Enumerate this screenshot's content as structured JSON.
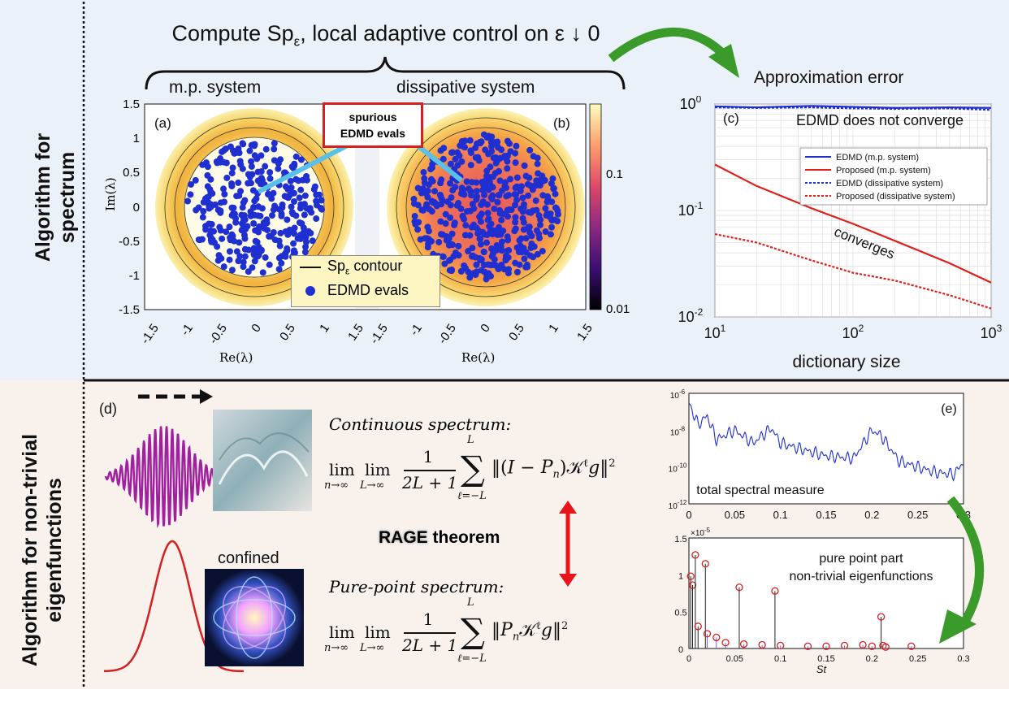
{
  "top_section": {
    "side_label": "Algorithm for spectrum",
    "header": "Compute Spε, local adaptive control on ε ↓ 0",
    "header_part1": "Compute Sp",
    "header_sub": "ε",
    "header_part2": ", local adaptive control on ε ↓ 0",
    "subtitle_left": "m.p. system",
    "subtitle_right": "dissipative system",
    "panel_a_label": "(a)",
    "panel_b_label": "(b)",
    "callout": "spurious\nEDMD evals",
    "callout_line1": "spurious",
    "callout_line2": "EDMD evals",
    "legend": {
      "contour": "Spε contour",
      "contour_main": "Sp",
      "contour_sub": "ε",
      "contour_rest": " contour",
      "evals": "EDMD evals"
    },
    "axis_y_label": "Im(λ)",
    "axis_x_label": "Re(λ)",
    "y_ticks": [
      "1.5",
      "1",
      "0.5",
      "0",
      "-0.5",
      "-1",
      "-1.5"
    ],
    "x_ticks": [
      "-1.5",
      "-1",
      "-0.5",
      "0",
      "0.5",
      "1",
      "1.5"
    ],
    "colorbar_ticks": [
      "0.1",
      "0.01"
    ],
    "approx_title": "Approximation error"
  },
  "chart_data": [
    {
      "type": "line",
      "panel": "(c)",
      "title": "EDMD does not converge",
      "xlabel": "dictionary size",
      "ylabel": "",
      "xscale": "log",
      "yscale": "log",
      "xlim": [
        10,
        1000
      ],
      "ylim": [
        0.01,
        1
      ],
      "x_ticks": [
        "10^1",
        "10^2",
        "10^3"
      ],
      "y_ticks": [
        "10^0",
        "10^-1",
        "10^-2"
      ],
      "annotation": "converges",
      "series": [
        {
          "name": "EDMD (m.p. system)",
          "style": "solid",
          "color": "#1f2fd0",
          "x": [
            10,
            20,
            50,
            100,
            200,
            500,
            1000
          ],
          "y": [
            0.95,
            0.93,
            0.96,
            0.94,
            0.92,
            0.93,
            0.92
          ]
        },
        {
          "name": "Proposed (m.p. system)",
          "style": "solid",
          "color": "#e0201a",
          "x": [
            10,
            20,
            50,
            100,
            200,
            500,
            1000
          ],
          "y": [
            0.27,
            0.17,
            0.105,
            0.075,
            0.052,
            0.032,
            0.021
          ]
        },
        {
          "name": "EDMD (dissipative system)",
          "style": "dotted",
          "color": "#1f2fd0",
          "x": [
            10,
            20,
            50,
            100,
            200,
            500,
            1000
          ],
          "y": [
            0.93,
            0.92,
            0.93,
            0.91,
            0.9,
            0.91,
            0.88
          ]
        },
        {
          "name": "Proposed (dissipative system)",
          "style": "dotted",
          "color": "#e0201a",
          "x": [
            10,
            20,
            50,
            100,
            200,
            500,
            1000
          ],
          "y": [
            0.06,
            0.05,
            0.034,
            0.026,
            0.022,
            0.016,
            0.012
          ]
        }
      ]
    },
    {
      "type": "line",
      "panel": "(e)",
      "title": "total spectral measure",
      "xlabel": "",
      "yscale": "log",
      "xlim": [
        0,
        0.3
      ],
      "ylim": [
        1e-12,
        1e-06
      ],
      "x_ticks": [
        "0",
        "0.05",
        "0.1",
        "0.15",
        "0.2",
        "0.25",
        "0.3"
      ],
      "y_ticks": [
        "10^-6",
        "10^-8",
        "10^-10",
        "10^-12"
      ],
      "series": [
        {
          "name": "total spectral measure",
          "color": "#1f2fd0",
          "x": [
            0,
            0.01,
            0.02,
            0.03,
            0.05,
            0.07,
            0.09,
            0.1,
            0.12,
            0.15,
            0.18,
            0.2,
            0.21,
            0.23,
            0.25,
            0.27,
            0.29,
            0.3
          ],
          "y": [
            3e-07,
            2e-08,
            6e-08,
            3e-09,
            1e-08,
            2e-09,
            1.3e-08,
            2e-09,
            1e-09,
            4e-10,
            3e-10,
            1e-08,
            5e-09,
            2e-10,
            1e-10,
            5e-11,
            4e-11,
            2e-10
          ]
        }
      ]
    },
    {
      "type": "scatter",
      "panel": "(e) lower",
      "title": "pure point part\nnon-trivial eigenfunctions",
      "xlabel": "St",
      "xlim": [
        0,
        0.3
      ],
      "ylim": [
        0,
        1.5
      ],
      "y_scale_label": "×10^-5",
      "x_ticks": [
        "0",
        "0.05",
        "0.1",
        "0.15",
        "0.2",
        "0.25",
        "0.3"
      ],
      "y_ticks": [
        "1.5",
        "1",
        "0.5",
        "0"
      ],
      "x": [
        0.002,
        0.004,
        0.007,
        0.018,
        0.055,
        0.094,
        0.21,
        0.01,
        0.02,
        0.03,
        0.04,
        0.06,
        0.08,
        0.1,
        0.13,
        0.15,
        0.17,
        0.19,
        0.2,
        0.212,
        0.215,
        0.243
      ],
      "y": [
        0.98,
        0.86,
        1.27,
        1.15,
        0.83,
        0.78,
        0.43,
        0.3,
        0.2,
        0.15,
        0.08,
        0.06,
        0.05,
        0.04,
        0.03,
        0.03,
        0.04,
        0.05,
        0.03,
        0.04,
        0.02,
        0.03
      ]
    }
  ],
  "bottom_section": {
    "side_label_line1": "Algorithm for non-trivial",
    "side_label_line2": "eigenfunctions",
    "panel_d_label": "(d)",
    "panel_e_label": "(e)",
    "continuous_title": "Continuous spectrum:",
    "pure_point_title": "Pure-point spectrum:",
    "rage_bold": "RAGE",
    "rage_rest": " theorem",
    "confined": "confined",
    "e_top_annotation": "total spectral measure",
    "e_bottom_annotation_line1": "pure point part",
    "e_bottom_annotation_line2": "non-trivial eigenfunctions",
    "e_xlabel": "St",
    "e_scale": "×10",
    "e_scale_exp": "-5"
  },
  "colors": {
    "top_bg": "#eaf1f8",
    "bottom_bg": "#f8f1ec",
    "accent_green": "#3a9a2a",
    "accent_red": "#e0201a",
    "evals_blue": "#1f2fd0"
  }
}
